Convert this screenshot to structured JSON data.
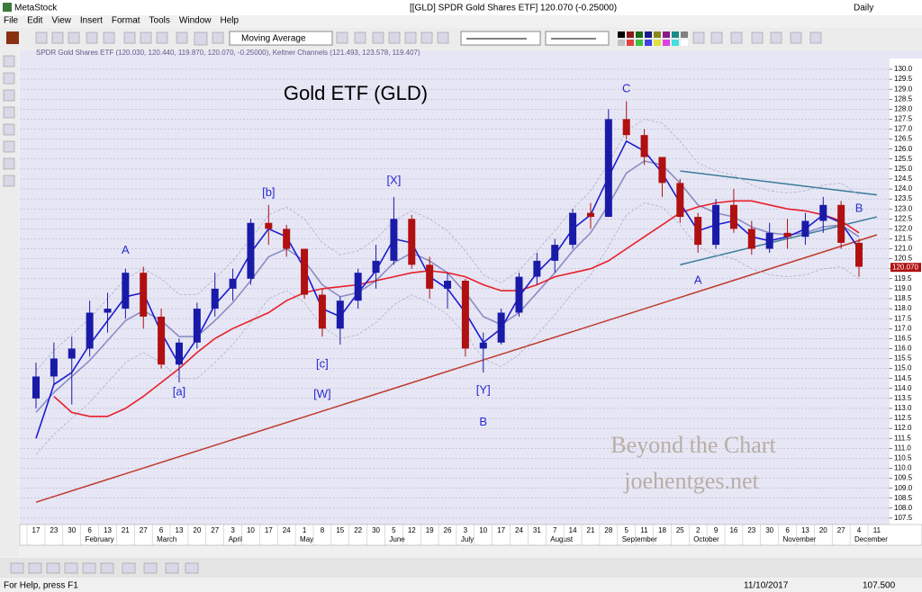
{
  "window": {
    "app_title": "MetaStock",
    "doc_title": "[[GLD] SPDR Gold Shares ETF]   120.070 (-0.25000)",
    "periodicity": "Daily",
    "menu": [
      "File",
      "Edit",
      "View",
      "Insert",
      "Format",
      "Tools",
      "Window",
      "Help"
    ],
    "indicator_select": "Moving Average",
    "status_help": "For Help, press F1",
    "status_date": "11/10/2017",
    "status_value": "107.500"
  },
  "chart_data": {
    "type": "candlestick",
    "title": "Gold ETF (GLD)",
    "header": "SPDR Gold Shares ETF (120.030, 120.440, 119.870, 120.070, -0.25000), Keltner Channels (121.493, 123.578, 119.407)",
    "watermark": [
      "Beyond the Chart",
      "joehentges.net"
    ],
    "categories": [
      "17",
      "23",
      "30",
      "6",
      "13",
      "21",
      "27",
      "6",
      "13",
      "20",
      "27",
      "3",
      "10",
      "17",
      "24",
      "1",
      "8",
      "15",
      "22",
      "30",
      "5",
      "12",
      "19",
      "26",
      "3",
      "10",
      "17",
      "24",
      "31",
      "7",
      "14",
      "21",
      "28",
      "5",
      "11",
      "18",
      "25",
      "2",
      "9",
      "16",
      "23",
      "30",
      "6",
      "13",
      "20",
      "27",
      "4",
      "11"
    ],
    "month_labels": [
      null,
      null,
      null,
      "February",
      null,
      null,
      null,
      "March",
      null,
      null,
      null,
      "April",
      null,
      null,
      null,
      "May",
      null,
      null,
      null,
      null,
      "June",
      null,
      null,
      null,
      "July",
      null,
      null,
      null,
      null,
      "August",
      null,
      null,
      null,
      "September",
      null,
      null,
      null,
      "October",
      null,
      null,
      null,
      null,
      "November",
      null,
      null,
      null,
      "December",
      null
    ],
    "open": [
      113.5,
      114.6,
      115.5,
      116,
      117.8,
      118,
      119.8,
      117.6,
      115.2,
      116.3,
      118,
      119,
      119.5,
      122.3,
      122,
      121,
      118.7,
      117,
      118.4,
      119.8,
      120.4,
      122.5,
      120.2,
      119,
      119.4,
      116,
      116.3,
      117.8,
      119.6,
      120.4,
      121.2,
      122.8,
      122.6,
      127.5,
      126.7,
      125.6,
      124.3,
      122.6,
      121.2,
      123.2,
      122,
      121,
      121.8,
      121.6,
      122.4,
      123.2,
      121.3,
      null
    ],
    "high": [
      115.3,
      116.3,
      116.6,
      118.4,
      118.8,
      120,
      120.1,
      118,
      116.5,
      118.3,
      119.8,
      120,
      122.5,
      123.2,
      122.2,
      121,
      119,
      118.6,
      120,
      121.2,
      123.6,
      122.7,
      120.6,
      119.8,
      119.5,
      116.8,
      118,
      119.8,
      120.8,
      121.5,
      123,
      123.3,
      128,
      128.4,
      127,
      125.6,
      124.5,
      122.8,
      123.5,
      124,
      122.4,
      122.3,
      122.5,
      122.8,
      123.6,
      123.4,
      121.5,
      null
    ],
    "low": [
      113,
      114.2,
      113.2,
      115.6,
      116.8,
      117.5,
      117,
      115,
      114.3,
      116,
      117.6,
      118.4,
      119.2,
      121.2,
      120.6,
      118.5,
      116.6,
      116.2,
      118,
      119,
      120.2,
      120,
      118.5,
      118,
      115.6,
      114.8,
      116.2,
      117.6,
      119.2,
      119.8,
      121,
      122,
      122.6,
      126.5,
      125.2,
      123.6,
      122.3,
      120.8,
      121,
      121.8,
      120.7,
      120.8,
      121,
      121.2,
      121.8,
      121,
      119.6,
      null
    ],
    "close": [
      114.6,
      115.5,
      116,
      117.8,
      118,
      119.8,
      117.6,
      115.2,
      116.3,
      118,
      119,
      119.5,
      122.3,
      122,
      121,
      118.7,
      117,
      118.4,
      119.8,
      120.4,
      122.5,
      120.2,
      119,
      119.4,
      116,
      116.3,
      117.8,
      119.6,
      120.4,
      121.2,
      122.8,
      122.6,
      127.5,
      126.7,
      125.6,
      124.3,
      122.6,
      121.2,
      123.2,
      122,
      121,
      121.8,
      121.6,
      122.4,
      123.2,
      121.3,
      120.1,
      null
    ],
    "up_color": "#1a1aa8",
    "down_color": "#b01010",
    "series": [
      {
        "color": "#b0b0c8",
        "dash": true,
        "values": [
          114.9,
          115.9,
          116.7,
          117.5,
          118.5,
          119.5,
          120,
          119.5,
          118.7,
          118.7,
          119.5,
          120.4,
          121.5,
          122.7,
          123.1,
          122.5,
          121.3,
          120.7,
          120.9,
          121.5,
          122.4,
          122.9,
          122.5,
          121.9,
          120.9,
          119.7,
          119.3,
          119.9,
          120.9,
          121.9,
          123,
          123.9,
          125.3,
          126.9,
          127.5,
          127.3,
          126.4,
          125.3,
          124.9,
          124.7,
          124.2,
          123.9,
          123.8,
          123.9,
          124.2,
          124.3,
          123.7,
          null
        ]
      },
      {
        "color": "#b0b0c8",
        "dash": true,
        "values": [
          110.7,
          111.7,
          112.5,
          113.3,
          114.3,
          115.3,
          115.8,
          115.3,
          114.5,
          114.5,
          115.3,
          116.2,
          117.3,
          118.5,
          118.9,
          118.3,
          117.1,
          116.5,
          116.7,
          117.3,
          118.2,
          118.7,
          118.3,
          117.7,
          116.7,
          115.5,
          115.1,
          115.7,
          116.7,
          117.7,
          118.8,
          119.7,
          121.1,
          122.7,
          123.3,
          123.1,
          122.2,
          121.1,
          120.7,
          120.5,
          120,
          119.7,
          119.6,
          119.7,
          120,
          120.1,
          119.5,
          null
        ]
      },
      {
        "color": "#8c8cc4",
        "values": [
          112.8,
          113.8,
          114.6,
          115.4,
          116.4,
          117.4,
          117.9,
          117.4,
          116.6,
          116.6,
          117.4,
          118.3,
          119.4,
          120.6,
          121,
          120.4,
          119.2,
          118.6,
          118.8,
          119.4,
          120.3,
          120.8,
          120.4,
          119.8,
          118.8,
          117.6,
          117.2,
          117.8,
          118.8,
          119.8,
          120.9,
          121.8,
          123.2,
          124.8,
          125.4,
          125.2,
          124.3,
          123.2,
          122.8,
          122.6,
          122.1,
          121.8,
          121.7,
          121.8,
          122.1,
          122.2,
          121.6,
          null
        ]
      },
      {
        "color": "#e8202a",
        "values": [
          null,
          113.6,
          112.8,
          112.6,
          112.6,
          113,
          113.6,
          114.3,
          115,
          115.8,
          116.5,
          117,
          117.4,
          117.8,
          118.4,
          118.8,
          119,
          119.1,
          119.2,
          119.4,
          119.6,
          119.8,
          119.9,
          119.8,
          119.6,
          119.2,
          118.9,
          118.9,
          119.2,
          119.6,
          119.8,
          120,
          120.4,
          121,
          121.6,
          122.2,
          122.8,
          123.1,
          123.3,
          123.4,
          123.4,
          123.2,
          123,
          122.9,
          122.7,
          122.4,
          121.8,
          null
        ]
      },
      {
        "color": "#1c1cd0",
        "values": [
          111.5,
          114.2,
          114.8,
          116.2,
          117.4,
          118.6,
          118.8,
          116.8,
          115.2,
          116.5,
          118.2,
          119.2,
          120.8,
          122,
          121.6,
          120,
          118,
          117.6,
          118.8,
          119.9,
          121.5,
          121.3,
          119.6,
          119,
          117.8,
          116.3,
          117,
          118.6,
          119.8,
          120.7,
          122,
          122.7,
          124.6,
          126.4,
          125.9,
          124.8,
          123.3,
          121.9,
          122.2,
          122.4,
          121.6,
          121.4,
          121.6,
          122,
          122.7,
          122.3,
          121,
          null
        ]
      }
    ],
    "trendlines": [
      {
        "color": "#c0392b",
        "x": [
          0,
          47
        ],
        "y": [
          108.3,
          121.7
        ]
      },
      {
        "color": "#3a7a9a",
        "x": [
          36,
          47
        ],
        "y": [
          124.9,
          123.7
        ]
      },
      {
        "color": "#3a7a9a",
        "x": [
          36,
          47
        ],
        "y": [
          120.2,
          122.6
        ]
      }
    ],
    "annotations": [
      {
        "text": "A",
        "x": 5,
        "y": 120.9
      },
      {
        "text": "[a]",
        "x": 8,
        "y": 113.8
      },
      {
        "text": "[b]",
        "x": 13,
        "y": 123.8
      },
      {
        "text": "[c]",
        "x": 16,
        "y": 115.2
      },
      {
        "text": "[W]",
        "x": 16,
        "y": 113.7
      },
      {
        "text": "[X]",
        "x": 20,
        "y": 124.4
      },
      {
        "text": "[Y]",
        "x": 25,
        "y": 113.9
      },
      {
        "text": "B",
        "x": 25,
        "y": 112.3
      },
      {
        "text": "C",
        "x": 33,
        "y": 129.0
      },
      {
        "text": "A",
        "x": 37,
        "y": 119.4
      },
      {
        "text": "B",
        "x": 46,
        "y": 123.0
      }
    ],
    "annotation_color": "#2a2ad0",
    "last_price": {
      "value": 120.07,
      "label": "120.070"
    },
    "ylim": [
      107.18,
      130.54
    ],
    "yticks": [
      107.5,
      {
        "value": 108,
        "label": "108.0"
      },
      108.5,
      {
        "value": 109,
        "label": "109.0"
      },
      109.5,
      {
        "value": 110,
        "label": "110.0"
      },
      110.5,
      {
        "value": 111,
        "label": "111.0"
      },
      111.5,
      {
        "value": 112,
        "label": "112.0"
      },
      112.5,
      {
        "value": 113,
        "label": "113.0"
      },
      113.5,
      {
        "value": 114,
        "label": "114.0"
      },
      114.5,
      {
        "value": 115,
        "label": "115.0"
      },
      115.5,
      {
        "value": 116,
        "label": "116.0"
      },
      116.5,
      {
        "value": 117,
        "label": "117.0"
      },
      117.5,
      {
        "value": 118,
        "label": "118.0"
      },
      118.5,
      {
        "value": 119,
        "label": "119.0"
      },
      119.5,
      {
        "value": 120,
        "label": "120.0"
      },
      120.5,
      {
        "value": 121,
        "label": "121.0"
      },
      121.5,
      {
        "value": 122,
        "label": "122.0"
      },
      122.5,
      {
        "value": 123,
        "label": "123.0"
      },
      123.5,
      {
        "value": 124,
        "label": "124.0"
      },
      124.5,
      {
        "value": 125,
        "label": "125.0"
      },
      125.5,
      {
        "value": 126,
        "label": "126.0"
      },
      126.5,
      {
        "value": 127,
        "label": "127.0"
      },
      127.5,
      {
        "value": 128,
        "label": "128.0"
      },
      128.5,
      {
        "value": 129,
        "label": "129.0"
      },
      129.5,
      {
        "value": 130,
        "label": "130.0"
      }
    ],
    "grid": true
  }
}
